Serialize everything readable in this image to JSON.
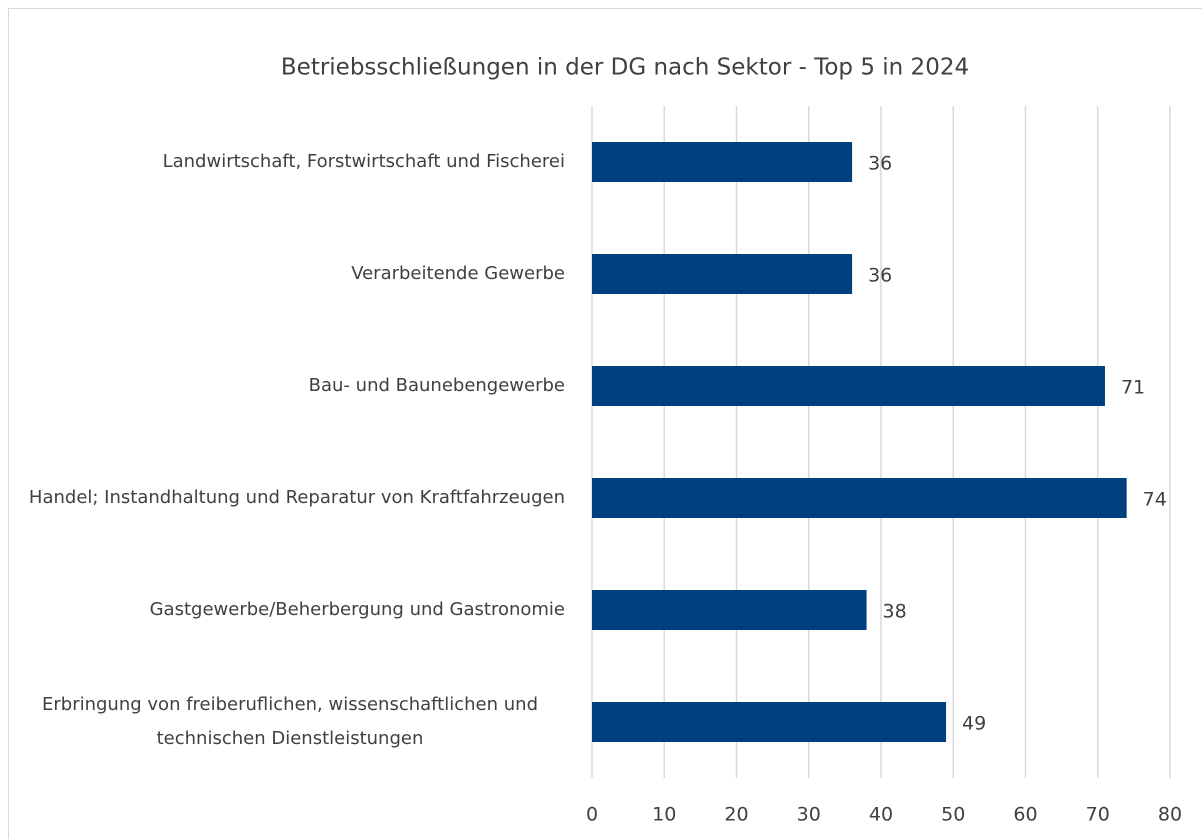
{
  "chart_data": {
    "type": "bar",
    "orientation": "horizontal",
    "title": "Betriebsschließungen in der DG nach Sektor - Top 5 in 2024",
    "categories": [
      "Landwirtschaft, Forstwirtschaft und Fischerei",
      "Verarbeitende Gewerbe",
      "Bau- und Baunebengewerbe",
      "Handel; Instandhaltung und Reparatur von Kraftfahrzeugen",
      "Gastgewerbe/Beherbergung und Gastronomie",
      "Erbringung von freiberuflichen, wissenschaftlichen und technischen Dienstleistungen"
    ],
    "values": [
      36,
      36,
      71,
      74,
      38,
      49
    ],
    "color": "#003f7d",
    "xlim": [
      0,
      80
    ],
    "xticks": [
      0,
      10,
      20,
      30,
      40,
      50,
      60,
      70,
      80
    ],
    "grid": true
  }
}
